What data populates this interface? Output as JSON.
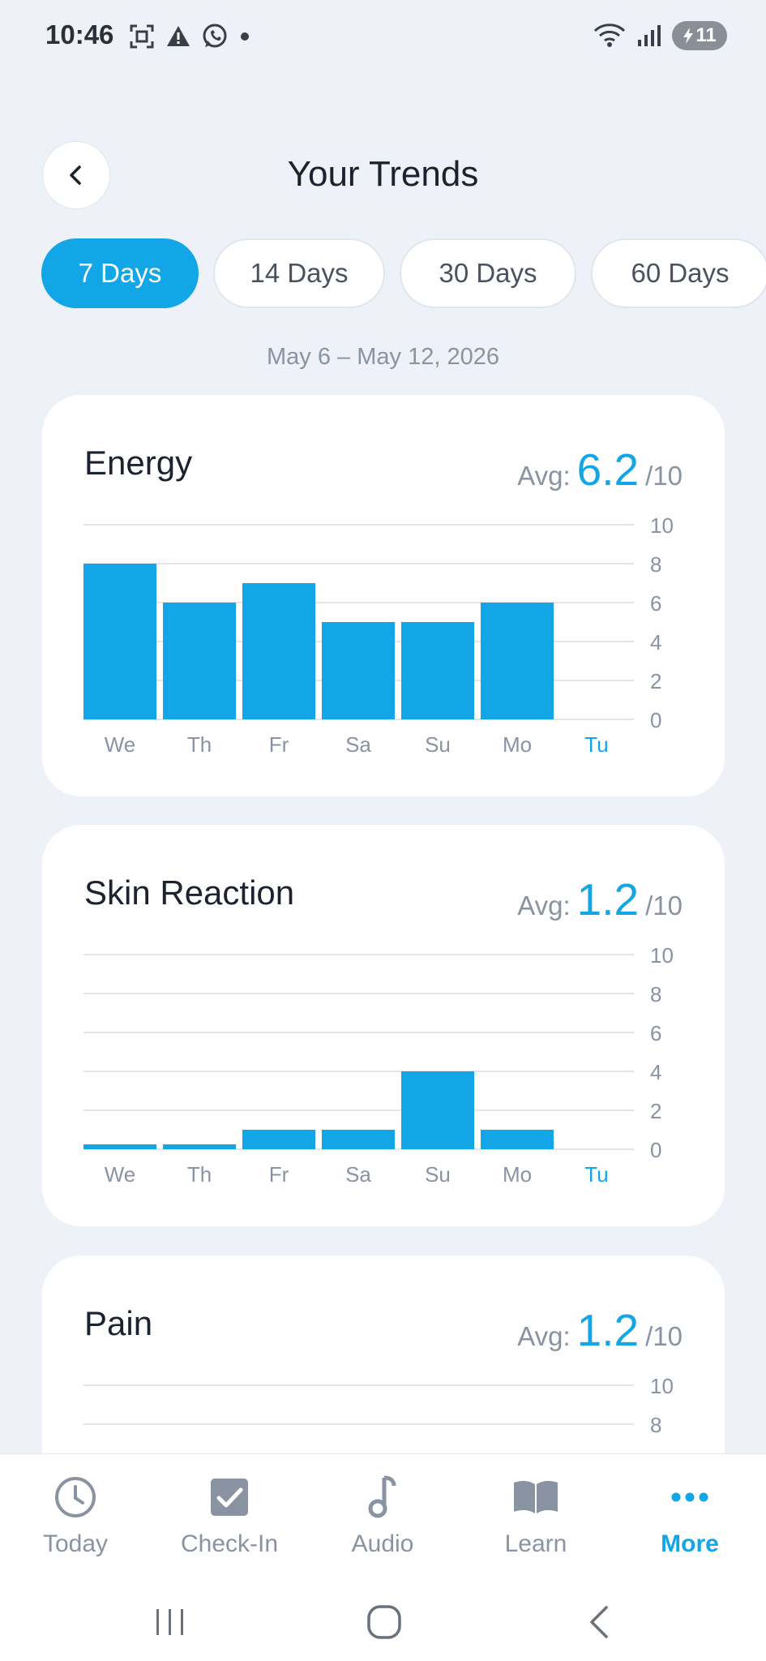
{
  "status_bar": {
    "time": "10:46",
    "battery": "11",
    "icons": [
      "screenshot-icon",
      "alert-icon",
      "whatsapp-icon",
      "dot-icon",
      "wifi-icon",
      "signal-icon",
      "battery-icon"
    ]
  },
  "header": {
    "title": "Your Trends",
    "back_icon": "chevron-left-icon"
  },
  "tabs": [
    {
      "label": "7 Days",
      "active": true
    },
    {
      "label": "14 Days",
      "active": false
    },
    {
      "label": "30 Days",
      "active": false
    },
    {
      "label": "60 Days",
      "active": false
    }
  ],
  "date_range": "May 6 – May 12, 2026",
  "avg_label": "Avg:",
  "avg_suffix": "/10",
  "colors": {
    "accent": "#13a6e6",
    "muted": "#8a93a2",
    "grid": "#e2e6ec"
  },
  "metrics": [
    {
      "title": "Energy",
      "avg": "6.2"
    },
    {
      "title": "Skin Reaction",
      "avg": "1.2"
    },
    {
      "title": "Pain",
      "avg": "1.2"
    }
  ],
  "chart_data": [
    {
      "type": "bar",
      "title": "Energy",
      "categories": [
        "We",
        "Th",
        "Fr",
        "Sa",
        "Su",
        "Mo",
        "Tu"
      ],
      "values": [
        8,
        6,
        7,
        5,
        5,
        6,
        null
      ],
      "highlight_category": "Tu",
      "ylim": [
        0,
        10
      ],
      "yticks": [
        10,
        8,
        6,
        4,
        2,
        0
      ],
      "grid": true,
      "y_axis_side": "right"
    },
    {
      "type": "bar",
      "title": "Skin Reaction",
      "categories": [
        "We",
        "Th",
        "Fr",
        "Sa",
        "Su",
        "Mo",
        "Tu"
      ],
      "values": [
        0,
        0,
        1,
        1,
        4,
        1,
        null
      ],
      "highlight_category": "Tu",
      "ylim": [
        0,
        10
      ],
      "yticks": [
        10,
        8,
        6,
        4,
        2,
        0
      ],
      "grid": true,
      "y_axis_side": "right"
    },
    {
      "type": "bar",
      "title": "Pain",
      "yticks": [
        10,
        8
      ],
      "ylim": [
        0,
        10
      ],
      "grid": true,
      "y_axis_side": "right",
      "partial": true
    }
  ],
  "bottom_nav": [
    {
      "label": "Today",
      "icon": "clock-icon",
      "active": false
    },
    {
      "label": "Check-In",
      "icon": "checkbox-icon",
      "active": false
    },
    {
      "label": "Audio",
      "icon": "music-note-icon",
      "active": false
    },
    {
      "label": "Learn",
      "icon": "book-icon",
      "active": false
    },
    {
      "label": "More",
      "icon": "more-dots-icon",
      "active": true
    }
  ],
  "system_nav": [
    "recent-apps-icon",
    "home-icon",
    "back-icon"
  ]
}
